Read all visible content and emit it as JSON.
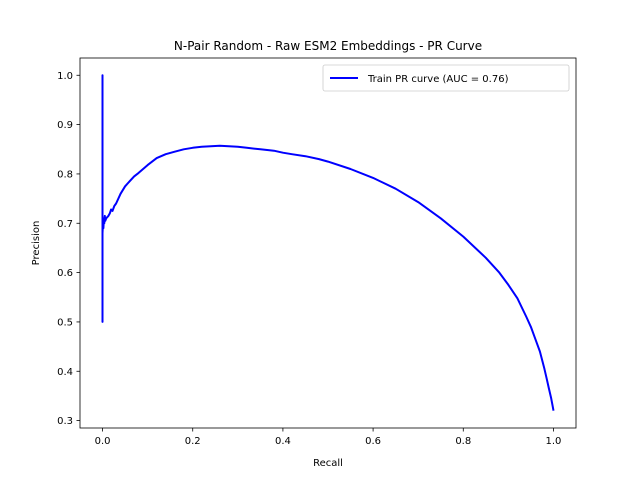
{
  "chart_data": {
    "type": "line",
    "title": "N-Pair Random - Raw ESM2 Embeddings - PR Curve",
    "xlabel": "Recall",
    "ylabel": "Precision",
    "xlim": [
      -0.05,
      1.05
    ],
    "ylim": [
      0.285,
      1.035
    ],
    "xticks": [
      0.0,
      0.2,
      0.4,
      0.6,
      0.8,
      1.0
    ],
    "xtick_labels": [
      "0.0",
      "0.2",
      "0.4",
      "0.6",
      "0.8",
      "1.0"
    ],
    "yticks": [
      0.3,
      0.4,
      0.5,
      0.6,
      0.7,
      0.8,
      0.9,
      1.0
    ],
    "ytick_labels": [
      "0.3",
      "0.4",
      "0.5",
      "0.6",
      "0.7",
      "0.8",
      "0.9",
      "1.0"
    ],
    "grid": false,
    "legend_position": "top-right",
    "series": [
      {
        "name": "Train PR curve (AUC = 0.76)",
        "color": "#0000ff",
        "x": [
          0.0,
          0.0,
          0.0,
          0.0,
          0.0,
          0.001,
          0.002,
          0.003,
          0.004,
          0.005,
          0.006,
          0.008,
          0.01,
          0.013,
          0.016,
          0.019,
          0.022,
          0.026,
          0.03,
          0.04,
          0.05,
          0.06,
          0.07,
          0.08,
          0.1,
          0.12,
          0.14,
          0.16,
          0.18,
          0.2,
          0.22,
          0.24,
          0.26,
          0.28,
          0.3,
          0.32,
          0.35,
          0.38,
          0.4,
          0.42,
          0.45,
          0.48,
          0.5,
          0.55,
          0.6,
          0.65,
          0.7,
          0.75,
          0.8,
          0.85,
          0.88,
          0.9,
          0.92,
          0.94,
          0.95,
          0.96,
          0.97,
          0.98,
          0.985,
          0.99,
          0.995,
          0.998,
          1.0
        ],
        "y": [
          0.5,
          1.0,
          0.6,
          0.5,
          0.68,
          0.7,
          0.69,
          0.71,
          0.7,
          0.715,
          0.705,
          0.71,
          0.712,
          0.715,
          0.72,
          0.728,
          0.725,
          0.735,
          0.74,
          0.76,
          0.775,
          0.785,
          0.795,
          0.802,
          0.818,
          0.832,
          0.84,
          0.845,
          0.85,
          0.853,
          0.855,
          0.856,
          0.857,
          0.856,
          0.855,
          0.853,
          0.85,
          0.847,
          0.843,
          0.84,
          0.836,
          0.83,
          0.825,
          0.81,
          0.792,
          0.77,
          0.743,
          0.71,
          0.673,
          0.63,
          0.6,
          0.575,
          0.548,
          0.51,
          0.49,
          0.465,
          0.44,
          0.405,
          0.385,
          0.365,
          0.345,
          0.33,
          0.32
        ]
      }
    ]
  }
}
